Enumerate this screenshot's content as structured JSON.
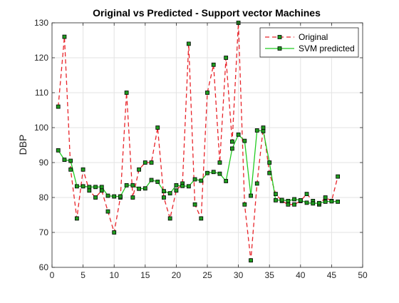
{
  "chart_data": {
    "type": "line",
    "title": "Original vs Predicted - Support vector Machines",
    "xlabel": "",
    "ylabel": "DBP",
    "xlim": [
      0,
      50
    ],
    "ylim": [
      60,
      130
    ],
    "xticks": [
      0,
      5,
      10,
      15,
      20,
      25,
      30,
      35,
      40,
      45,
      50
    ],
    "yticks": [
      60,
      70,
      80,
      90,
      100,
      110,
      120,
      130
    ],
    "grid": true,
    "legend": "top-right",
    "x": [
      1,
      2,
      3,
      4,
      5,
      6,
      7,
      8,
      9,
      10,
      11,
      12,
      13,
      14,
      15,
      16,
      17,
      18,
      19,
      20,
      21,
      22,
      23,
      24,
      25,
      26,
      27,
      28,
      29,
      30,
      31,
      32,
      33,
      34,
      35,
      36,
      37,
      38,
      39,
      40,
      41,
      42,
      43,
      44,
      45,
      46
    ],
    "series": [
      {
        "name": "Original",
        "color": "#e8242a",
        "style": "dashed",
        "marker": "square",
        "values": [
          106,
          126,
          88,
          74,
          88,
          82,
          80,
          82,
          76,
          70,
          80,
          110,
          80,
          88,
          90,
          90,
          100,
          80,
          74,
          82,
          84,
          124,
          78,
          74,
          110,
          118,
          90,
          120,
          96,
          130,
          78,
          62,
          84,
          100,
          87,
          81,
          79,
          78,
          78,
          79,
          81,
          79,
          78,
          80,
          79,
          86
        ]
      },
      {
        "name": "SVM predicted",
        "color": "#22cc22",
        "style": "solid",
        "marker": "square",
        "values": [
          93.5,
          90.8,
          90.5,
          83.2,
          83.2,
          83,
          83,
          83,
          80.5,
          80.3,
          80.3,
          83.5,
          83.5,
          82.5,
          82.6,
          85,
          84.5,
          81.8,
          81.2,
          83.5,
          83.3,
          83.2,
          85.2,
          84.8,
          87,
          87.3,
          86.8,
          84.7,
          94,
          98,
          96.2,
          80.5,
          99.2,
          99,
          90,
          79.2,
          79.3,
          79,
          79.5,
          79.2,
          78.5,
          78.3,
          78.4,
          78.8,
          78.9,
          78.8
        ]
      }
    ]
  }
}
